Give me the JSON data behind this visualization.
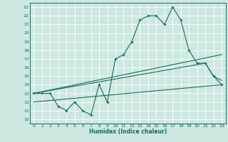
{
  "xlabel": "Humidex (Indice chaleur)",
  "bg_color": "#cce8e0",
  "grid_color": "#aad4ca",
  "line_color": "#1a6b5e",
  "xlim": [
    -0.5,
    23.5
  ],
  "ylim": [
    9.5,
    23.5
  ],
  "yticks": [
    10,
    11,
    12,
    13,
    14,
    15,
    16,
    17,
    18,
    19,
    20,
    21,
    22,
    23
  ],
  "xticks": [
    0,
    1,
    2,
    3,
    4,
    5,
    6,
    7,
    8,
    9,
    10,
    11,
    12,
    13,
    14,
    15,
    16,
    17,
    18,
    19,
    20,
    21,
    22,
    23
  ],
  "line1_x": [
    0,
    1,
    2,
    3,
    4,
    5,
    6,
    7,
    8,
    9,
    10,
    11,
    12,
    13,
    14,
    15,
    16,
    17,
    18,
    19,
    20,
    21,
    22,
    23
  ],
  "line1_y": [
    13,
    13,
    13,
    11.5,
    11,
    12,
    11,
    10.5,
    14,
    12,
    17,
    17.5,
    19,
    21.5,
    22,
    22,
    21,
    23,
    21.5,
    18,
    16.5,
    16.5,
    15,
    14
  ],
  "line2_x": [
    0,
    23
  ],
  "line2_y": [
    13,
    17.5
  ],
  "line3_x": [
    0,
    21,
    22,
    23
  ],
  "line3_y": [
    13,
    16.5,
    15,
    14.5
  ],
  "line4_x": [
    0,
    23
  ],
  "line4_y": [
    12,
    14
  ]
}
